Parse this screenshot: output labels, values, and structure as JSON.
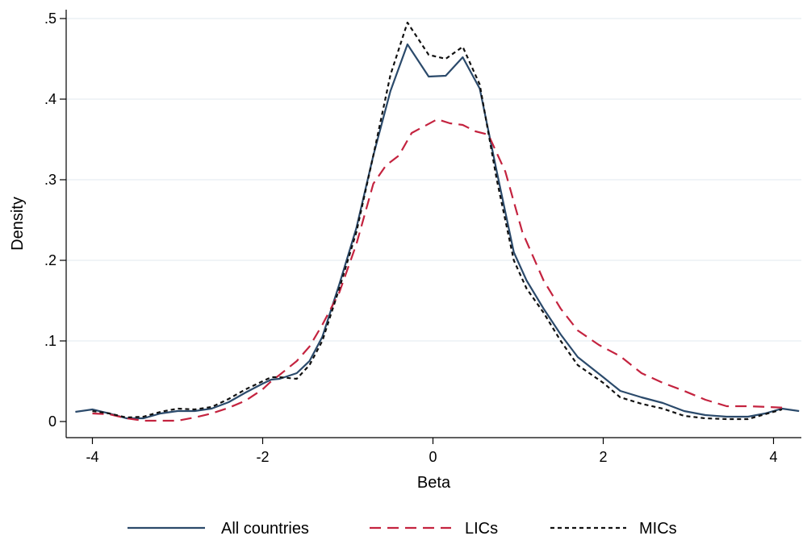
{
  "chart_data": {
    "type": "line",
    "title": "",
    "xlabel": "Beta",
    "ylabel": "Density",
    "xlim": [
      -4.2,
      4.3
    ],
    "ylim": [
      0,
      0.5
    ],
    "x_ticks": [
      -4,
      -2,
      0,
      2,
      4
    ],
    "x_tick_labels": [
      "-4",
      "-2",
      "0",
      "2",
      "4"
    ],
    "y_ticks": [
      0,
      0.1,
      0.2,
      0.3,
      0.4,
      0.5
    ],
    "y_tick_labels": [
      "0",
      ".1",
      ".2",
      ".3",
      ".4",
      ".5"
    ],
    "grid": "horizontal",
    "legend_position": "bottom",
    "series": [
      {
        "name": "All countries",
        "color": "#2b4a6b",
        "dash": "solid",
        "points": [
          [
            -4.2,
            0.012
          ],
          [
            -4.0,
            0.015
          ],
          [
            -3.8,
            0.01
          ],
          [
            -3.6,
            0.004
          ],
          [
            -3.4,
            0.004
          ],
          [
            -3.2,
            0.01
          ],
          [
            -3.0,
            0.013
          ],
          [
            -2.8,
            0.013
          ],
          [
            -2.6,
            0.016
          ],
          [
            -2.4,
            0.024
          ],
          [
            -2.2,
            0.036
          ],
          [
            -2.0,
            0.047
          ],
          [
            -1.9,
            0.052
          ],
          [
            -1.8,
            0.053
          ],
          [
            -1.6,
            0.06
          ],
          [
            -1.45,
            0.075
          ],
          [
            -1.3,
            0.105
          ],
          [
            -1.1,
            0.17
          ],
          [
            -0.9,
            0.24
          ],
          [
            -0.7,
            0.33
          ],
          [
            -0.5,
            0.41
          ],
          [
            -0.3,
            0.468
          ],
          [
            -0.05,
            0.428
          ],
          [
            0.15,
            0.429
          ],
          [
            0.35,
            0.452
          ],
          [
            0.55,
            0.413
          ],
          [
            0.75,
            0.31
          ],
          [
            0.95,
            0.21
          ],
          [
            1.1,
            0.175
          ],
          [
            1.3,
            0.14
          ],
          [
            1.5,
            0.108
          ],
          [
            1.7,
            0.08
          ],
          [
            2.0,
            0.055
          ],
          [
            2.2,
            0.038
          ],
          [
            2.45,
            0.03
          ],
          [
            2.7,
            0.023
          ],
          [
            2.95,
            0.013
          ],
          [
            3.2,
            0.008
          ],
          [
            3.45,
            0.006
          ],
          [
            3.7,
            0.006
          ],
          [
            3.9,
            0.01
          ],
          [
            4.1,
            0.016
          ],
          [
            4.3,
            0.013
          ]
        ]
      },
      {
        "name": "LICs",
        "color": "#c4233f",
        "dash": "long-dash",
        "points": [
          [
            -4.0,
            0.01
          ],
          [
            -3.8,
            0.009
          ],
          [
            -3.6,
            0.004
          ],
          [
            -3.4,
            0.001
          ],
          [
            -3.2,
            0.001
          ],
          [
            -3.0,
            0.001
          ],
          [
            -2.8,
            0.005
          ],
          [
            -2.6,
            0.01
          ],
          [
            -2.4,
            0.017
          ],
          [
            -2.2,
            0.026
          ],
          [
            -2.0,
            0.04
          ],
          [
            -1.9,
            0.05
          ],
          [
            -1.8,
            0.058
          ],
          [
            -1.6,
            0.075
          ],
          [
            -1.45,
            0.093
          ],
          [
            -1.3,
            0.12
          ],
          [
            -1.1,
            0.16
          ],
          [
            -0.9,
            0.22
          ],
          [
            -0.7,
            0.295
          ],
          [
            -0.55,
            0.318
          ],
          [
            -0.4,
            0.33
          ],
          [
            -0.25,
            0.358
          ],
          [
            0.05,
            0.375
          ],
          [
            0.2,
            0.37
          ],
          [
            0.35,
            0.368
          ],
          [
            0.5,
            0.36
          ],
          [
            0.65,
            0.356
          ],
          [
            0.85,
            0.31
          ],
          [
            1.05,
            0.235
          ],
          [
            1.3,
            0.175
          ],
          [
            1.5,
            0.14
          ],
          [
            1.7,
            0.113
          ],
          [
            1.95,
            0.095
          ],
          [
            2.2,
            0.081
          ],
          [
            2.45,
            0.06
          ],
          [
            2.7,
            0.048
          ],
          [
            2.95,
            0.038
          ],
          [
            3.2,
            0.027
          ],
          [
            3.45,
            0.019
          ],
          [
            3.7,
            0.019
          ],
          [
            3.95,
            0.018
          ],
          [
            4.15,
            0.017
          ]
        ]
      },
      {
        "name": "MICs",
        "color": "#111111",
        "dash": "short-dash",
        "points": [
          [
            -4.0,
            0.013
          ],
          [
            -3.8,
            0.01
          ],
          [
            -3.6,
            0.005
          ],
          [
            -3.4,
            0.006
          ],
          [
            -3.2,
            0.012
          ],
          [
            -3.0,
            0.016
          ],
          [
            -2.8,
            0.015
          ],
          [
            -2.6,
            0.018
          ],
          [
            -2.4,
            0.028
          ],
          [
            -2.2,
            0.04
          ],
          [
            -2.0,
            0.05
          ],
          [
            -1.9,
            0.055
          ],
          [
            -1.8,
            0.055
          ],
          [
            -1.6,
            0.053
          ],
          [
            -1.45,
            0.07
          ],
          [
            -1.3,
            0.1
          ],
          [
            -1.1,
            0.165
          ],
          [
            -0.9,
            0.235
          ],
          [
            -0.7,
            0.33
          ],
          [
            -0.5,
            0.43
          ],
          [
            -0.3,
            0.495
          ],
          [
            -0.05,
            0.455
          ],
          [
            0.15,
            0.45
          ],
          [
            0.35,
            0.465
          ],
          [
            0.55,
            0.418
          ],
          [
            0.75,
            0.3
          ],
          [
            0.95,
            0.2
          ],
          [
            1.1,
            0.165
          ],
          [
            1.3,
            0.135
          ],
          [
            1.5,
            0.1
          ],
          [
            1.7,
            0.07
          ],
          [
            2.0,
            0.048
          ],
          [
            2.2,
            0.03
          ],
          [
            2.45,
            0.022
          ],
          [
            2.7,
            0.016
          ],
          [
            2.95,
            0.007
          ],
          [
            3.2,
            0.004
          ],
          [
            3.45,
            0.003
          ],
          [
            3.7,
            0.003
          ],
          [
            3.9,
            0.009
          ],
          [
            4.1,
            0.015
          ]
        ]
      }
    ]
  }
}
